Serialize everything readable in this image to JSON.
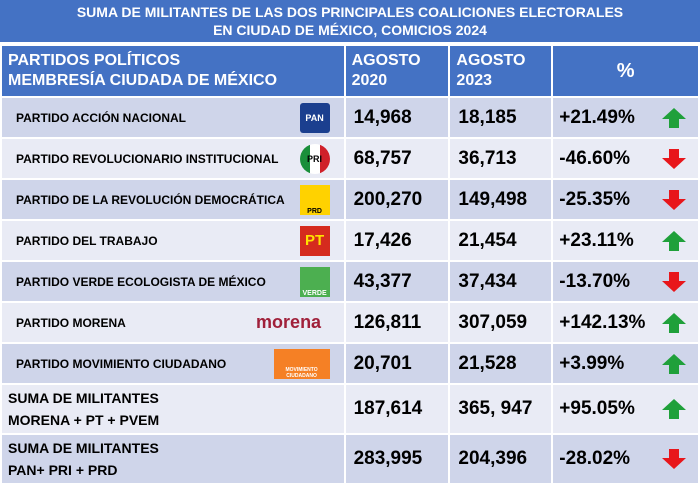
{
  "title": {
    "line1": "SUMA DE MILITANTES DE LAS DOS PRINCIPALES COALICIONES ELECTORALES",
    "line2": "EN CIUDAD DE MÉXICO, COMICIOS 2024"
  },
  "header": {
    "col1_line1": "PARTIDOS POLÍTICOS",
    "col1_line2": "MEMBRESÍA CIUDADA DE MÉXICO",
    "col2_line1": "AGOSTO",
    "col2_line2": "2020",
    "col3_line1": "AGOSTO",
    "col3_line2": "2023",
    "col4": "%"
  },
  "rows": [
    {
      "name": "PARTIDO ACCIÓN NACIONAL",
      "logo": "PAN",
      "y2020": "14,968",
      "y2023": "18,185",
      "pct": "+21.49%",
      "trend": "up"
    },
    {
      "name": "PARTIDO REVOLUCIONARIO INSTITUCIONAL",
      "logo": "PRI",
      "y2020": "68,757",
      "y2023": "36,713",
      "pct": "-46.60%",
      "trend": "down"
    },
    {
      "name": "PARTIDO DE LA REVOLUCIÓN DEMOCRÁTICA",
      "logo": "PRD",
      "y2020": "200,270",
      "y2023": "149,498",
      "pct": "-25.35%",
      "trend": "down"
    },
    {
      "name": "PARTIDO DEL TRABAJO",
      "logo": "PT",
      "y2020": "17,426",
      "y2023": "21,454",
      "pct": "+23.11%",
      "trend": "up"
    },
    {
      "name": "PARTIDO VERDE ECOLOGISTA DE MÉXICO",
      "logo": "VERDE",
      "y2020": "43,377",
      "y2023": "37,434",
      "pct": "-13.70%",
      "trend": "down"
    },
    {
      "name": "PARTIDO MORENA",
      "logo": "morena",
      "y2020": "126,811",
      "y2023": "307,059",
      "pct": "+142.13%",
      "trend": "up"
    },
    {
      "name": "PARTIDO MOVIMIENTO CIUDADANO",
      "logo": "MOVIMIENTO CIUDADANO",
      "y2020": "20,701",
      "y2023": "21,528",
      "pct": "+3.99%",
      "trend": "up"
    }
  ],
  "sums": [
    {
      "line1": "SUMA DE MILITANTES",
      "line2": "MORENA + PT + PVEM",
      "y2020": "187,614",
      "y2023": "365, 947",
      "pct": "+95.05%",
      "trend": "up"
    },
    {
      "line1": "SUMA DE MILITANTES",
      "line2": "PAN+ PRI + PRD",
      "y2020": "283,995",
      "y2023": "204,396",
      "pct": "-28.02%",
      "trend": "down"
    }
  ],
  "colors": {
    "header": "#4472C4",
    "row_dark": "#CFD5EA",
    "row_light": "#E9EBF5",
    "up": "#1FA03A",
    "down": "#E8161B"
  }
}
